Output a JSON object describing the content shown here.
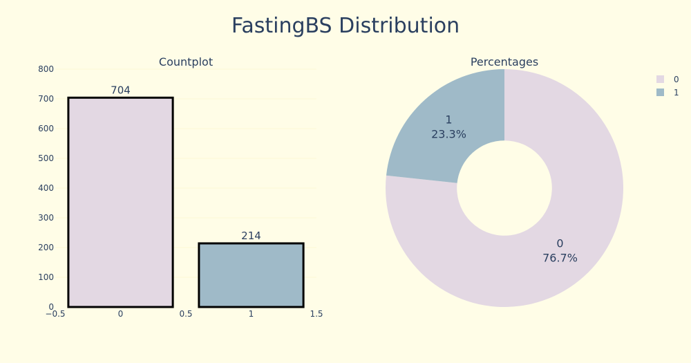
{
  "title": "FastingBS Distribution",
  "colors": {
    "background": "#fffde7",
    "category_0": "#e3d8e3",
    "category_1": "#9fbac8",
    "bar_outline": "#000000",
    "text": "#2a3f5f"
  },
  "chart_data": [
    {
      "type": "bar",
      "title": "Countplot",
      "categories": [
        "0",
        "1"
      ],
      "x": [
        0,
        1
      ],
      "values": [
        704,
        214
      ],
      "value_labels": [
        "704",
        "214"
      ],
      "xlim": [
        -0.5,
        1.5
      ],
      "ylim": [
        0,
        800
      ],
      "xticks": [
        -0.5,
        0,
        0.5,
        1,
        1.5
      ],
      "xtick_labels": [
        "−0.5",
        "0",
        "0.5",
        "1",
        "1.5"
      ],
      "yticks": [
        0,
        100,
        200,
        300,
        400,
        500,
        600,
        700,
        800
      ],
      "ytick_labels": [
        "0",
        "100",
        "200",
        "300",
        "400",
        "500",
        "600",
        "700",
        "800"
      ],
      "grid": true
    },
    {
      "type": "pie",
      "title": "Percentages",
      "labels": [
        "0",
        "1"
      ],
      "values": [
        704,
        214
      ],
      "percent_labels": [
        "76.7%",
        "23.3%"
      ],
      "hole": 0.4,
      "legend": {
        "position": "top-right",
        "entries": [
          "0",
          "1"
        ]
      }
    }
  ]
}
